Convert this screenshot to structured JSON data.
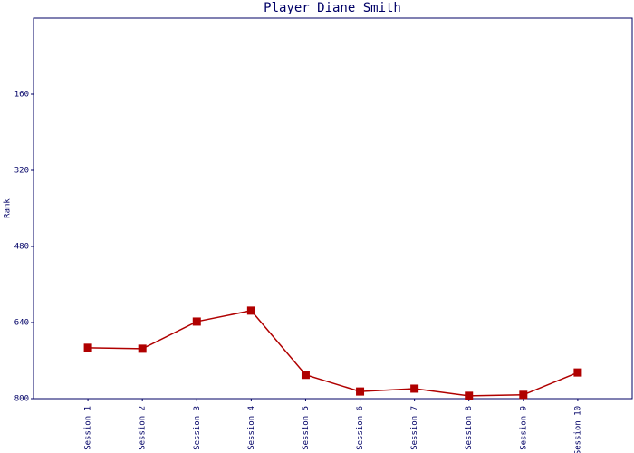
{
  "chart_data": {
    "type": "line",
    "title": "Player Diane Smith",
    "y_label": "Rank",
    "categories": [
      "Session 1",
      "Session 2",
      "Session 3",
      "Session 4",
      "Session 5",
      "Session 6",
      "Session 7",
      "Session 8",
      "Session 9",
      "Session 10"
    ],
    "series": [
      {
        "name": "Rank",
        "color": "#b00000",
        "values": [
          693,
          695,
          638,
          615,
          750,
          785,
          779,
          794,
          792,
          745
        ]
      }
    ],
    "ylim": [
      800,
      0
    ],
    "yticks": [
      160,
      320,
      480,
      640,
      800
    ],
    "grid": false
  }
}
